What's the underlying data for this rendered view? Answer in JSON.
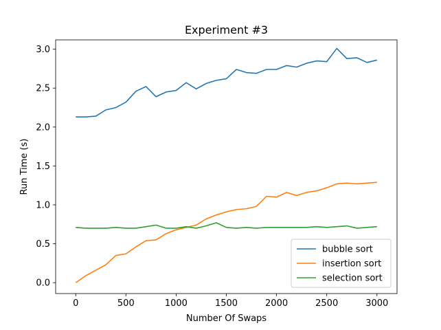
{
  "chart_data": {
    "type": "line",
    "title": "Experiment #3",
    "xlabel": "Number Of Swaps",
    "ylabel": "Run Time (s)",
    "xlim": [
      -200,
      3200
    ],
    "ylim": [
      -0.14,
      3.12
    ],
    "x_ticks": [
      0,
      500,
      1000,
      1500,
      2000,
      2500,
      3000
    ],
    "x_tick_labels": [
      "0",
      "500",
      "1000",
      "1500",
      "2000",
      "2500",
      "3000"
    ],
    "y_ticks": [
      0.0,
      0.5,
      1.0,
      1.5,
      2.0,
      2.5,
      3.0
    ],
    "y_tick_labels": [
      "0.0",
      "0.5",
      "1.0",
      "1.5",
      "2.0",
      "2.5",
      "3.0"
    ],
    "grid": false,
    "legend_position": "lower-right",
    "x": [
      0,
      100,
      200,
      300,
      400,
      500,
      600,
      700,
      800,
      900,
      1000,
      1100,
      1200,
      1300,
      1400,
      1500,
      1600,
      1700,
      1800,
      1900,
      2000,
      2100,
      2200,
      2300,
      2400,
      2500,
      2600,
      2700,
      2800,
      2900,
      3000
    ],
    "series": [
      {
        "name": "bubble sort",
        "color": "#1f77b4",
        "values": [
          2.13,
          2.13,
          2.14,
          2.22,
          2.25,
          2.32,
          2.46,
          2.52,
          2.39,
          2.45,
          2.47,
          2.57,
          2.49,
          2.56,
          2.6,
          2.62,
          2.74,
          2.7,
          2.69,
          2.74,
          2.74,
          2.79,
          2.77,
          2.82,
          2.85,
          2.84,
          3.01,
          2.88,
          2.89,
          2.83,
          2.86
        ]
      },
      {
        "name": "insertion sort",
        "color": "#ff7f0e",
        "values": [
          0.0,
          0.09,
          0.16,
          0.23,
          0.35,
          0.37,
          0.46,
          0.54,
          0.55,
          0.63,
          0.68,
          0.71,
          0.74,
          0.82,
          0.87,
          0.91,
          0.94,
          0.95,
          0.98,
          1.11,
          1.1,
          1.16,
          1.12,
          1.16,
          1.18,
          1.22,
          1.27,
          1.28,
          1.27,
          1.28,
          1.29
        ]
      },
      {
        "name": "selection sort",
        "color": "#2ca02c",
        "values": [
          0.71,
          0.7,
          0.7,
          0.7,
          0.71,
          0.7,
          0.7,
          0.72,
          0.74,
          0.7,
          0.7,
          0.72,
          0.7,
          0.73,
          0.77,
          0.71,
          0.7,
          0.71,
          0.7,
          0.71,
          0.71,
          0.71,
          0.71,
          0.71,
          0.72,
          0.71,
          0.72,
          0.73,
          0.7,
          0.71,
          0.72
        ]
      }
    ]
  }
}
